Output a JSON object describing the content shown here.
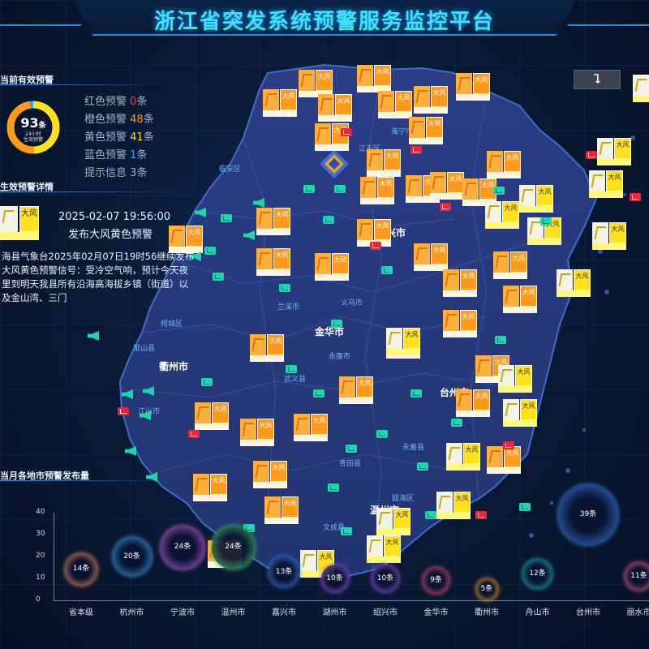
{
  "header": {
    "title": "浙江省突发系统预警服务监控平台"
  },
  "controls": {
    "collapse_icon": "double-chevron-down-icon"
  },
  "current_warnings": {
    "title": "当前有效预警",
    "total": "93",
    "unit": "条",
    "sub_line1": "24小时",
    "sub_line2": "生效预警",
    "stats": [
      {
        "label": "红色预警",
        "value": "0",
        "unit": "条",
        "color": "#ff3b3b"
      },
      {
        "label": "橙色预警",
        "value": "48",
        "unit": "条",
        "color": "#ff9b1a"
      },
      {
        "label": "黄色预警",
        "value": "41",
        "unit": "条",
        "color": "#ffe11f"
      },
      {
        "label": "蓝色预警",
        "value": "1",
        "unit": "条",
        "color": "#2fa3ff"
      },
      {
        "label": "提示信息",
        "value": "3",
        "unit": "条",
        "color": "#9fb3c8"
      }
    ]
  },
  "detail": {
    "title": "生效预警详情",
    "icon_char": "大风",
    "timestamp": "2025-02-07 19:56:00",
    "headline": "发布大风黄色预警",
    "body": "海县气象台2025年02月07日19时56继续发布大风黄色预警信号：受冷空气响，预计今天夜里到明天我县所有沿海高海拔乡镇（街道）以及金山湾、三门"
  },
  "map": {
    "city_labels": [
      {
        "name": "临安区"
      },
      {
        "name": "海宁市"
      },
      {
        "name": "江干区"
      },
      {
        "name": "兰溪市"
      },
      {
        "name": "义乌市"
      },
      {
        "name": "永康市"
      },
      {
        "name": "武义县"
      },
      {
        "name": "常山县"
      },
      {
        "name": "柯城区"
      },
      {
        "name": "江山市"
      },
      {
        "name": "永嘉县"
      },
      {
        "name": "青田县"
      },
      {
        "name": "瓯海区"
      },
      {
        "name": "文成县"
      }
    ],
    "main_cities": [
      {
        "name": "金华市"
      },
      {
        "name": "衢州市"
      },
      {
        "name": "台州市"
      },
      {
        "name": "温州市"
      },
      {
        "name": "兴市"
      },
      {
        "name": "市"
      }
    ],
    "warning_text_orange": "大风",
    "warning_text_yellow": "大风"
  },
  "chart_data": {
    "type": "bubble",
    "title": "当月各地市预警发布量",
    "yticks": [
      0,
      10,
      20,
      30,
      40
    ],
    "ylim": [
      0,
      40
    ],
    "categories": [
      "省本级",
      "杭州市",
      "宁波市",
      "温州市",
      "嘉兴市",
      "湖州市",
      "绍兴市",
      "金华市",
      "衢州市",
      "舟山市",
      "台州市",
      "丽水市"
    ],
    "values": [
      14,
      20,
      24,
      24,
      13,
      10,
      10,
      9,
      5,
      12,
      39,
      11
    ],
    "labels": [
      "14条",
      "20条",
      "24条",
      "24条",
      "13条",
      "10条",
      "10条",
      "9条",
      "5条",
      "12条",
      "39条",
      "11条"
    ],
    "colors": [
      "#f08a5d",
      "#3aa0e8",
      "#c060e0",
      "#40c060",
      "#2f7fe0",
      "#9a50e0",
      "#9a50e0",
      "#e05070",
      "#f0a020",
      "#20b0b0",
      "#3a7fe8",
      "#e06080"
    ]
  }
}
